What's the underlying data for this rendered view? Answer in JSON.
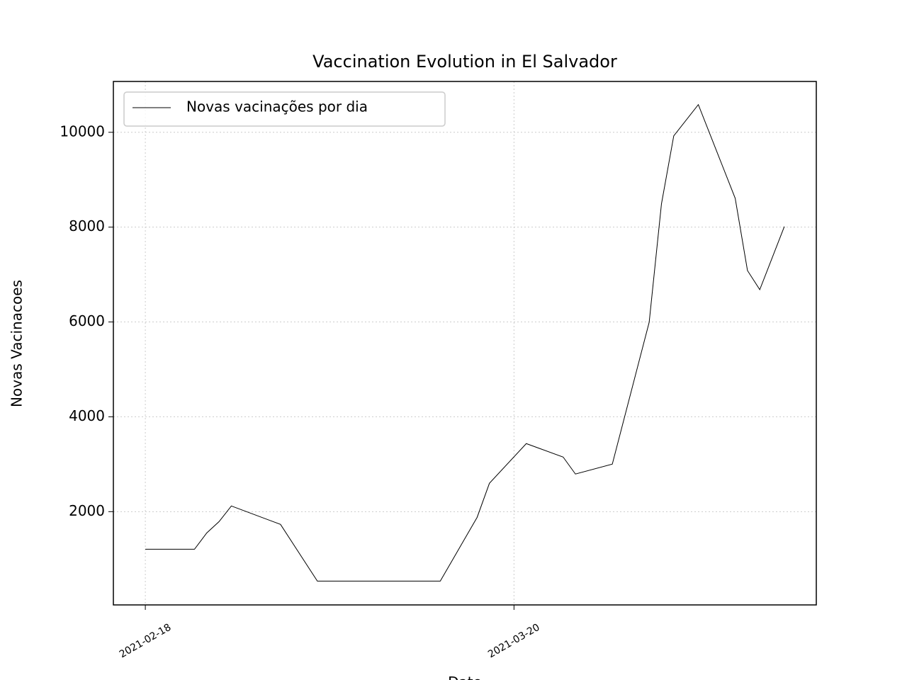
{
  "chart_data": {
    "type": "line",
    "title": "Vaccination Evolution in El Salvador",
    "x_label": "Date",
    "y_label": "Novas Vacinacoes",
    "x": [
      "2021-02-18",
      "2021-02-22",
      "2021-02-23",
      "2021-02-24",
      "2021-02-25",
      "2021-03-01",
      "2021-03-04",
      "2021-03-14",
      "2021-03-17",
      "2021-03-18",
      "2021-03-21",
      "2021-03-24",
      "2021-03-25",
      "2021-03-28",
      "2021-03-31",
      "2021-04-01",
      "2021-04-02",
      "2021-04-04",
      "2021-04-07",
      "2021-04-08",
      "2021-04-09",
      "2021-04-11"
    ],
    "series": [
      {
        "name": "Novas vacinações por dia",
        "color": "#000000",
        "values": [
          1207,
          1207,
          1551,
          1790,
          2120,
          1731,
          535,
          535,
          1880,
          2598,
          3435,
          3151,
          2793,
          3002,
          5993,
          8490,
          9925,
          10583,
          8609,
          7084,
          6681,
          8012
        ]
      }
    ],
    "xlim": [
      "2021-02-15T09:36",
      "2021-04-13T14:24"
    ],
    "xticks": [
      "2021-02-18",
      "2021-03-20"
    ],
    "ylim": [
      33,
      11072
    ],
    "yticks": [
      2000,
      4000,
      6000,
      8000,
      10000
    ],
    "grid": true,
    "legend": "upper left"
  }
}
